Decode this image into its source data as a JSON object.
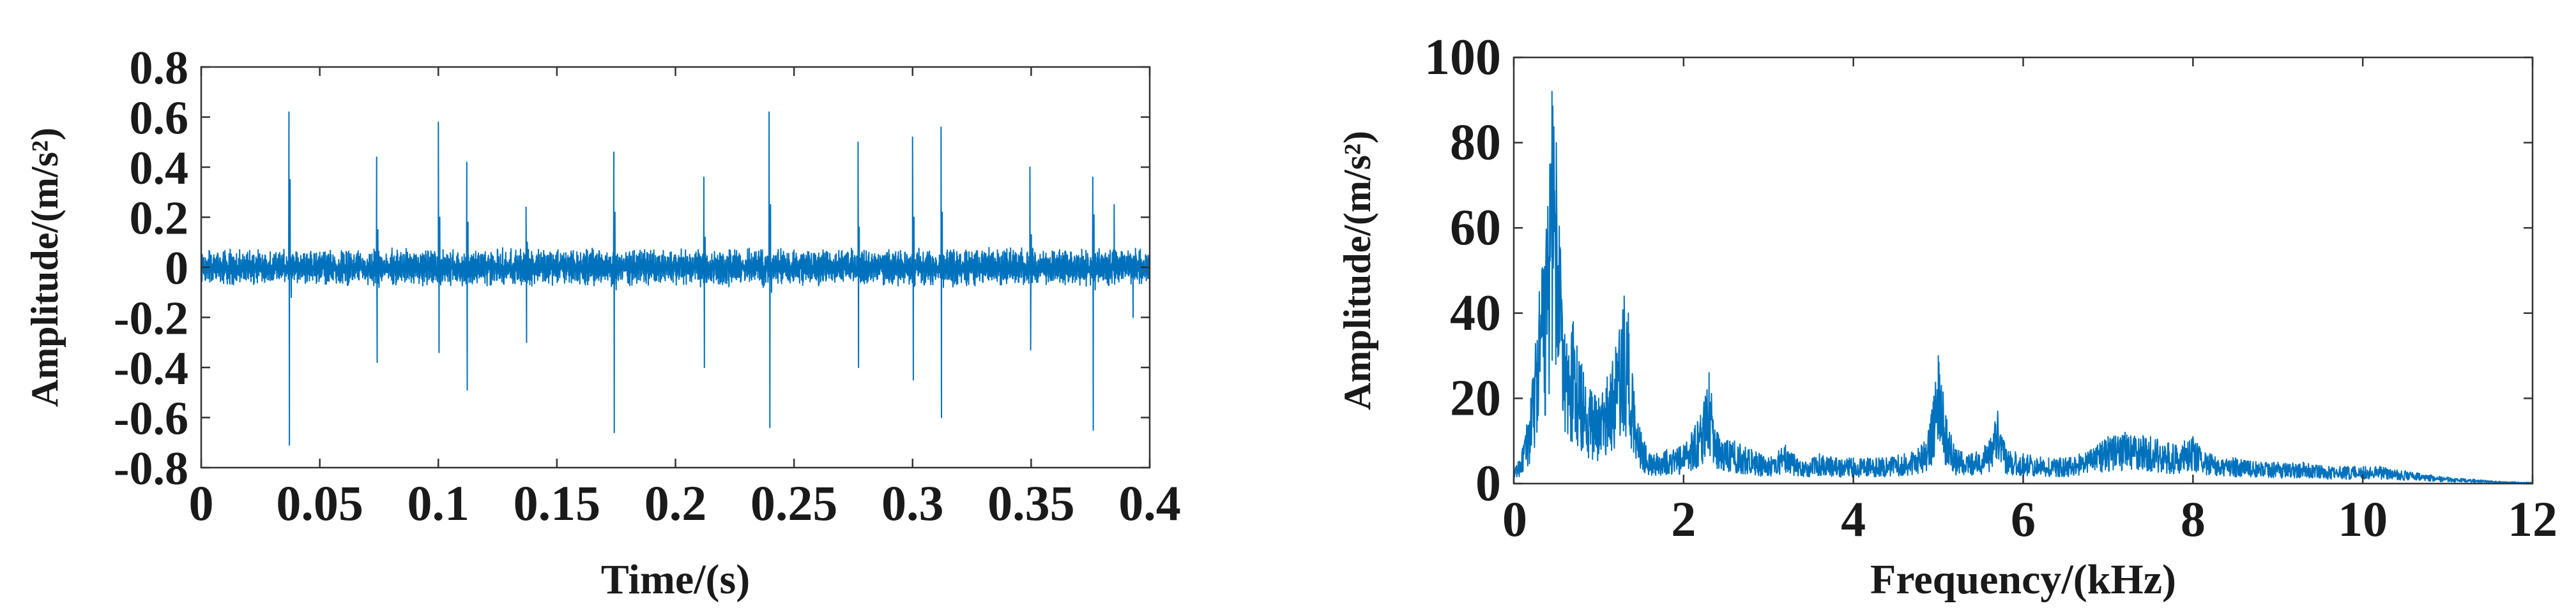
{
  "chart_data": [
    {
      "type": "line",
      "xlabel": "Time/(s)",
      "ylabel": "Amplitude/(m/s²)",
      "xlim": [
        0,
        0.4
      ],
      "ylim": [
        -0.8,
        0.8
      ],
      "xticks": [
        0,
        0.05,
        0.1,
        0.15,
        0.2,
        0.25,
        0.3,
        0.35,
        0.4
      ],
      "xtick_labels": [
        "0",
        "0.05",
        "0.1",
        "0.15",
        "0.2",
        "0.25",
        "0.3",
        "0.35",
        "0.4"
      ],
      "yticks": [
        -0.8,
        -0.6,
        -0.4,
        -0.2,
        0,
        0.2,
        0.4,
        0.6,
        0.8
      ],
      "ytick_labels": [
        "-0.8",
        "-0.6",
        "-0.4",
        "-0.2",
        "0",
        "0.2",
        "0.4",
        "0.6",
        "0.8"
      ],
      "grid": false,
      "color": "#0072BD",
      "series": [
        {
          "x": [
            0.0,
            0.012,
            0.024,
            0.037,
            0.0372,
            0.0375,
            0.038,
            0.05,
            0.062,
            0.074,
            0.0742,
            0.0745,
            0.075,
            0.087,
            0.099,
            0.1,
            0.1003,
            0.1006,
            0.101,
            0.112,
            0.1122,
            0.1125,
            0.113,
            0.125,
            0.137,
            0.1372,
            0.1375,
            0.138,
            0.15,
            0.162,
            0.174,
            0.1742,
            0.1745,
            0.175,
            0.187,
            0.199,
            0.2,
            0.212,
            0.2122,
            0.2125,
            0.213,
            0.225,
            0.237,
            0.2395,
            0.2398,
            0.2401,
            0.2405,
            0.25,
            0.262,
            0.277,
            0.2772,
            0.2775,
            0.278,
            0.29,
            0.3,
            0.3003,
            0.3006,
            0.301,
            0.312,
            0.3122,
            0.3125,
            0.313,
            0.325,
            0.337,
            0.3495,
            0.3498,
            0.3501,
            0.3505,
            0.362,
            0.376,
            0.3762,
            0.3765,
            0.377,
            0.385,
            0.393,
            0.4
          ],
          "y": [
            0.05,
            -0.06,
            0.07,
            0.62,
            -0.71,
            0.35,
            -0.12,
            0.06,
            -0.07,
            0.44,
            -0.38,
            0.15,
            -0.08,
            0.06,
            -0.05,
            0.58,
            -0.34,
            0.2,
            -0.07,
            0.42,
            -0.49,
            0.18,
            -0.06,
            0.07,
            0.24,
            -0.3,
            0.1,
            -0.05,
            0.06,
            -0.07,
            0.46,
            -0.66,
            0.22,
            -0.09,
            0.07,
            -0.06,
            0.05,
            0.36,
            -0.4,
            0.12,
            -0.06,
            0.07,
            -0.08,
            0.62,
            -0.64,
            0.25,
            -0.1,
            0.06,
            -0.05,
            0.5,
            -0.4,
            0.16,
            -0.06,
            0.07,
            0.52,
            -0.45,
            0.2,
            -0.07,
            0.56,
            -0.6,
            0.22,
            -0.08,
            0.06,
            -0.07,
            0.4,
            -0.33,
            0.13,
            -0.06,
            0.07,
            0.36,
            -0.65,
            0.21,
            -0.09,
            0.25,
            -0.2,
            0.05
          ]
        }
      ]
    },
    {
      "type": "line",
      "xlabel": "Frequency/(kHz)",
      "ylabel": "Amplitude/(m/s²)",
      "xlim": [
        0,
        12
      ],
      "ylim": [
        0,
        100
      ],
      "xticks": [
        0,
        2,
        4,
        6,
        8,
        10,
        12
      ],
      "xtick_labels": [
        "0",
        "2",
        "4",
        "6",
        "8",
        "10",
        "12"
      ],
      "yticks": [
        0,
        20,
        40,
        60,
        80,
        100
      ],
      "ytick_labels": [
        "0",
        "20",
        "40",
        "60",
        "80",
        "100"
      ],
      "grid": false,
      "color": "#0072BD",
      "series": [
        {
          "x": [
            0.0,
            0.1,
            0.2,
            0.3,
            0.4,
            0.45,
            0.5,
            0.55,
            0.6,
            0.7,
            0.8,
            0.9,
            1.0,
            1.1,
            1.2,
            1.3,
            1.35,
            1.4,
            1.5,
            1.6,
            1.8,
            2.0,
            2.2,
            2.3,
            2.4,
            2.6,
            2.8,
            3.0,
            3.2,
            3.4,
            3.6,
            3.8,
            4.0,
            4.3,
            4.6,
            4.8,
            4.9,
            5.0,
            5.1,
            5.2,
            5.4,
            5.6,
            5.7,
            5.8,
            6.0,
            6.3,
            6.5,
            6.8,
            7.0,
            7.2,
            7.5,
            7.8,
            8.0,
            8.2,
            8.5,
            8.8,
            9.0,
            9.3,
            9.6,
            9.9,
            10.2,
            10.5,
            10.8,
            11.0,
            11.3,
            11.6,
            12.0
          ],
          "y": [
            3,
            8,
            20,
            45,
            65,
            92,
            80,
            55,
            35,
            38,
            28,
            22,
            20,
            25,
            32,
            44,
            40,
            25,
            12,
            7,
            8,
            9,
            16,
            26,
            12,
            10,
            8,
            6,
            9,
            5,
            7,
            6,
            6,
            6,
            7,
            9,
            14,
            30,
            15,
            8,
            7,
            10,
            17,
            8,
            7,
            6,
            6,
            8,
            11,
            12,
            11,
            9,
            11,
            7,
            6,
            5,
            5,
            5,
            4,
            4,
            4,
            3,
            2,
            1.5,
            1,
            0.5,
            0.3
          ]
        }
      ]
    }
  ]
}
